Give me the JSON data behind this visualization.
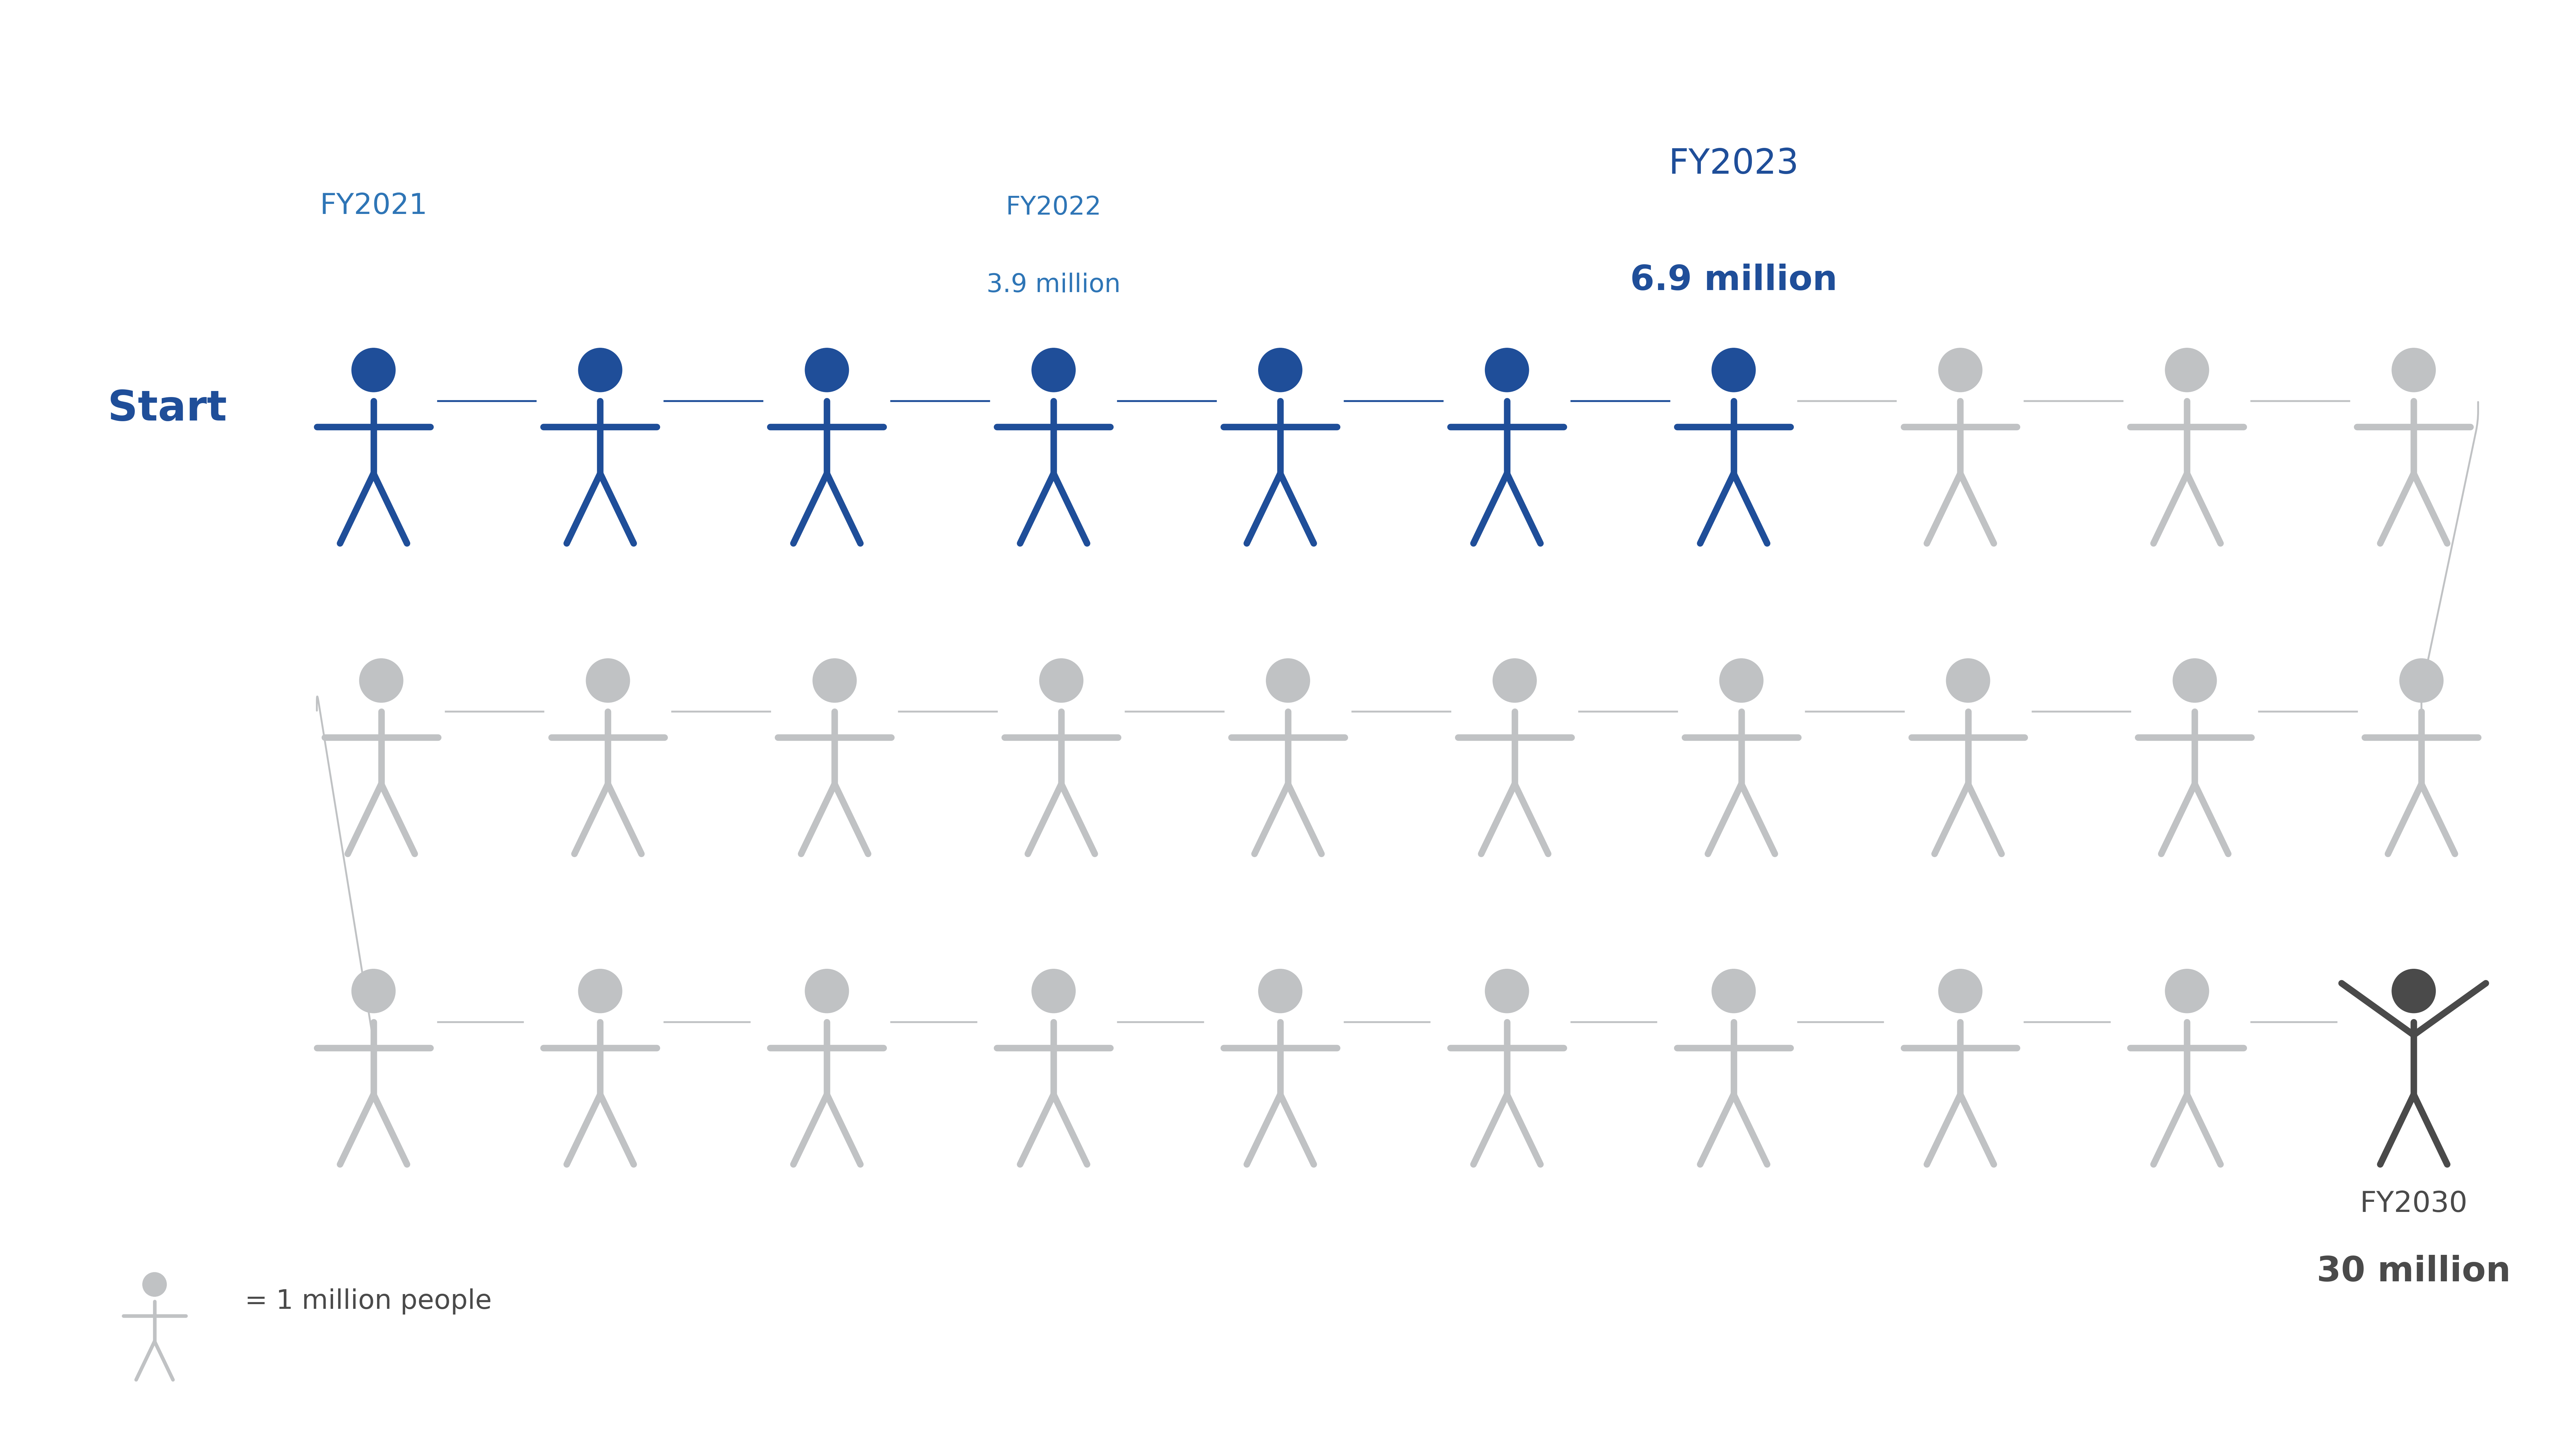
{
  "background_color": "#ffffff",
  "blue_color": "#1F4E99",
  "gray_color": "#C0C2C4",
  "dark_gray_color": "#4A4A4A",
  "light_blue_label": "#2E75B6",
  "filled_count": 7,
  "labels": {
    "start": "Start",
    "fy2021": "FY2021",
    "fy2022_line1": "FY2022",
    "fy2022_line2": "3.9 million",
    "fy2023_line1": "FY2023",
    "fy2023_line2": "6.9 million",
    "fy2030_line1": "FY2030",
    "fy2030_line2": "30 million",
    "legend": "= 1 million people"
  },
  "figsize": [
    76.8,
    43.21
  ],
  "dpi": 100
}
